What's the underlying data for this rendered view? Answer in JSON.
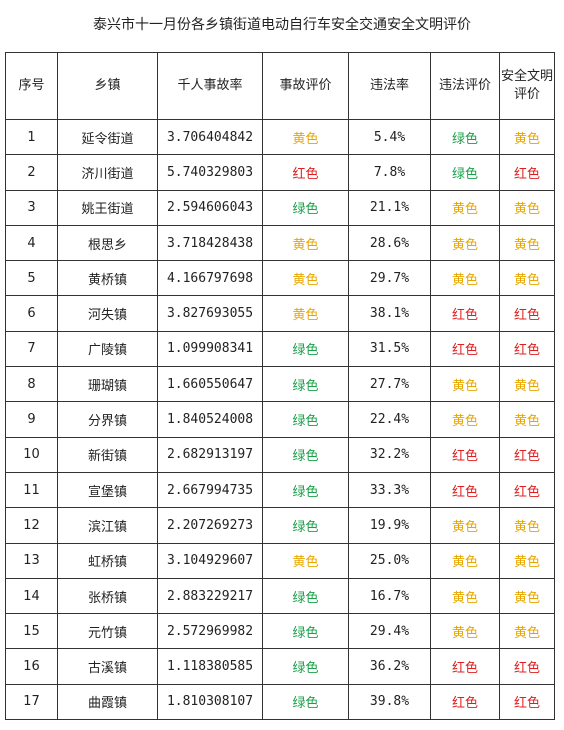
{
  "title": "泰兴市十一月份各乡镇街道电动自行车安全交通安全文明评价",
  "headers": [
    "序号",
    "乡镇",
    "千人事故率",
    "事故评价",
    "违法率",
    "违法评价",
    "安全文明评价"
  ],
  "colors": {
    "黄色": "#e8a600",
    "红色": "#e02020",
    "绿色": "#1aa14a"
  },
  "rows": [
    [
      "1",
      "延令街道",
      "3.706404842",
      "黄色",
      "5.4%",
      "绿色",
      "黄色"
    ],
    [
      "2",
      "济川街道",
      "5.740329803",
      "红色",
      "7.8%",
      "绿色",
      "红色"
    ],
    [
      "3",
      "姚王街道",
      "2.594606043",
      "绿色",
      "21.1%",
      "黄色",
      "黄色"
    ],
    [
      "4",
      "根思乡",
      "3.718428438",
      "黄色",
      "28.6%",
      "黄色",
      "黄色"
    ],
    [
      "5",
      "黄桥镇",
      "4.166797698",
      "黄色",
      "29.7%",
      "黄色",
      "黄色"
    ],
    [
      "6",
      "河失镇",
      "3.827693055",
      "黄色",
      "38.1%",
      "红色",
      "红色"
    ],
    [
      "7",
      "广陵镇",
      "1.099908341",
      "绿色",
      "31.5%",
      "红色",
      "红色"
    ],
    [
      "8",
      "珊瑚镇",
      "1.660550647",
      "绿色",
      "27.7%",
      "黄色",
      "黄色"
    ],
    [
      "9",
      "分界镇",
      "1.840524008",
      "绿色",
      "22.4%",
      "黄色",
      "黄色"
    ],
    [
      "10",
      "新街镇",
      "2.682913197",
      "绿色",
      "32.2%",
      "红色",
      "红色"
    ],
    [
      "11",
      "宣堡镇",
      "2.667994735",
      "绿色",
      "33.3%",
      "红色",
      "红色"
    ],
    [
      "12",
      "滨江镇",
      "2.207269273",
      "绿色",
      "19.9%",
      "黄色",
      "黄色"
    ],
    [
      "13",
      "虹桥镇",
      "3.104929607",
      "黄色",
      "25.0%",
      "黄色",
      "黄色"
    ],
    [
      "14",
      "张桥镇",
      "2.883229217",
      "绿色",
      "16.7%",
      "黄色",
      "黄色"
    ],
    [
      "15",
      "元竹镇",
      "2.572969982",
      "绿色",
      "29.4%",
      "黄色",
      "黄色"
    ],
    [
      "16",
      "古溪镇",
      "1.118380585",
      "绿色",
      "36.2%",
      "红色",
      "红色"
    ],
    [
      "17",
      "曲霞镇",
      "1.810308107",
      "绿色",
      "39.8%",
      "红色",
      "红色"
    ]
  ]
}
